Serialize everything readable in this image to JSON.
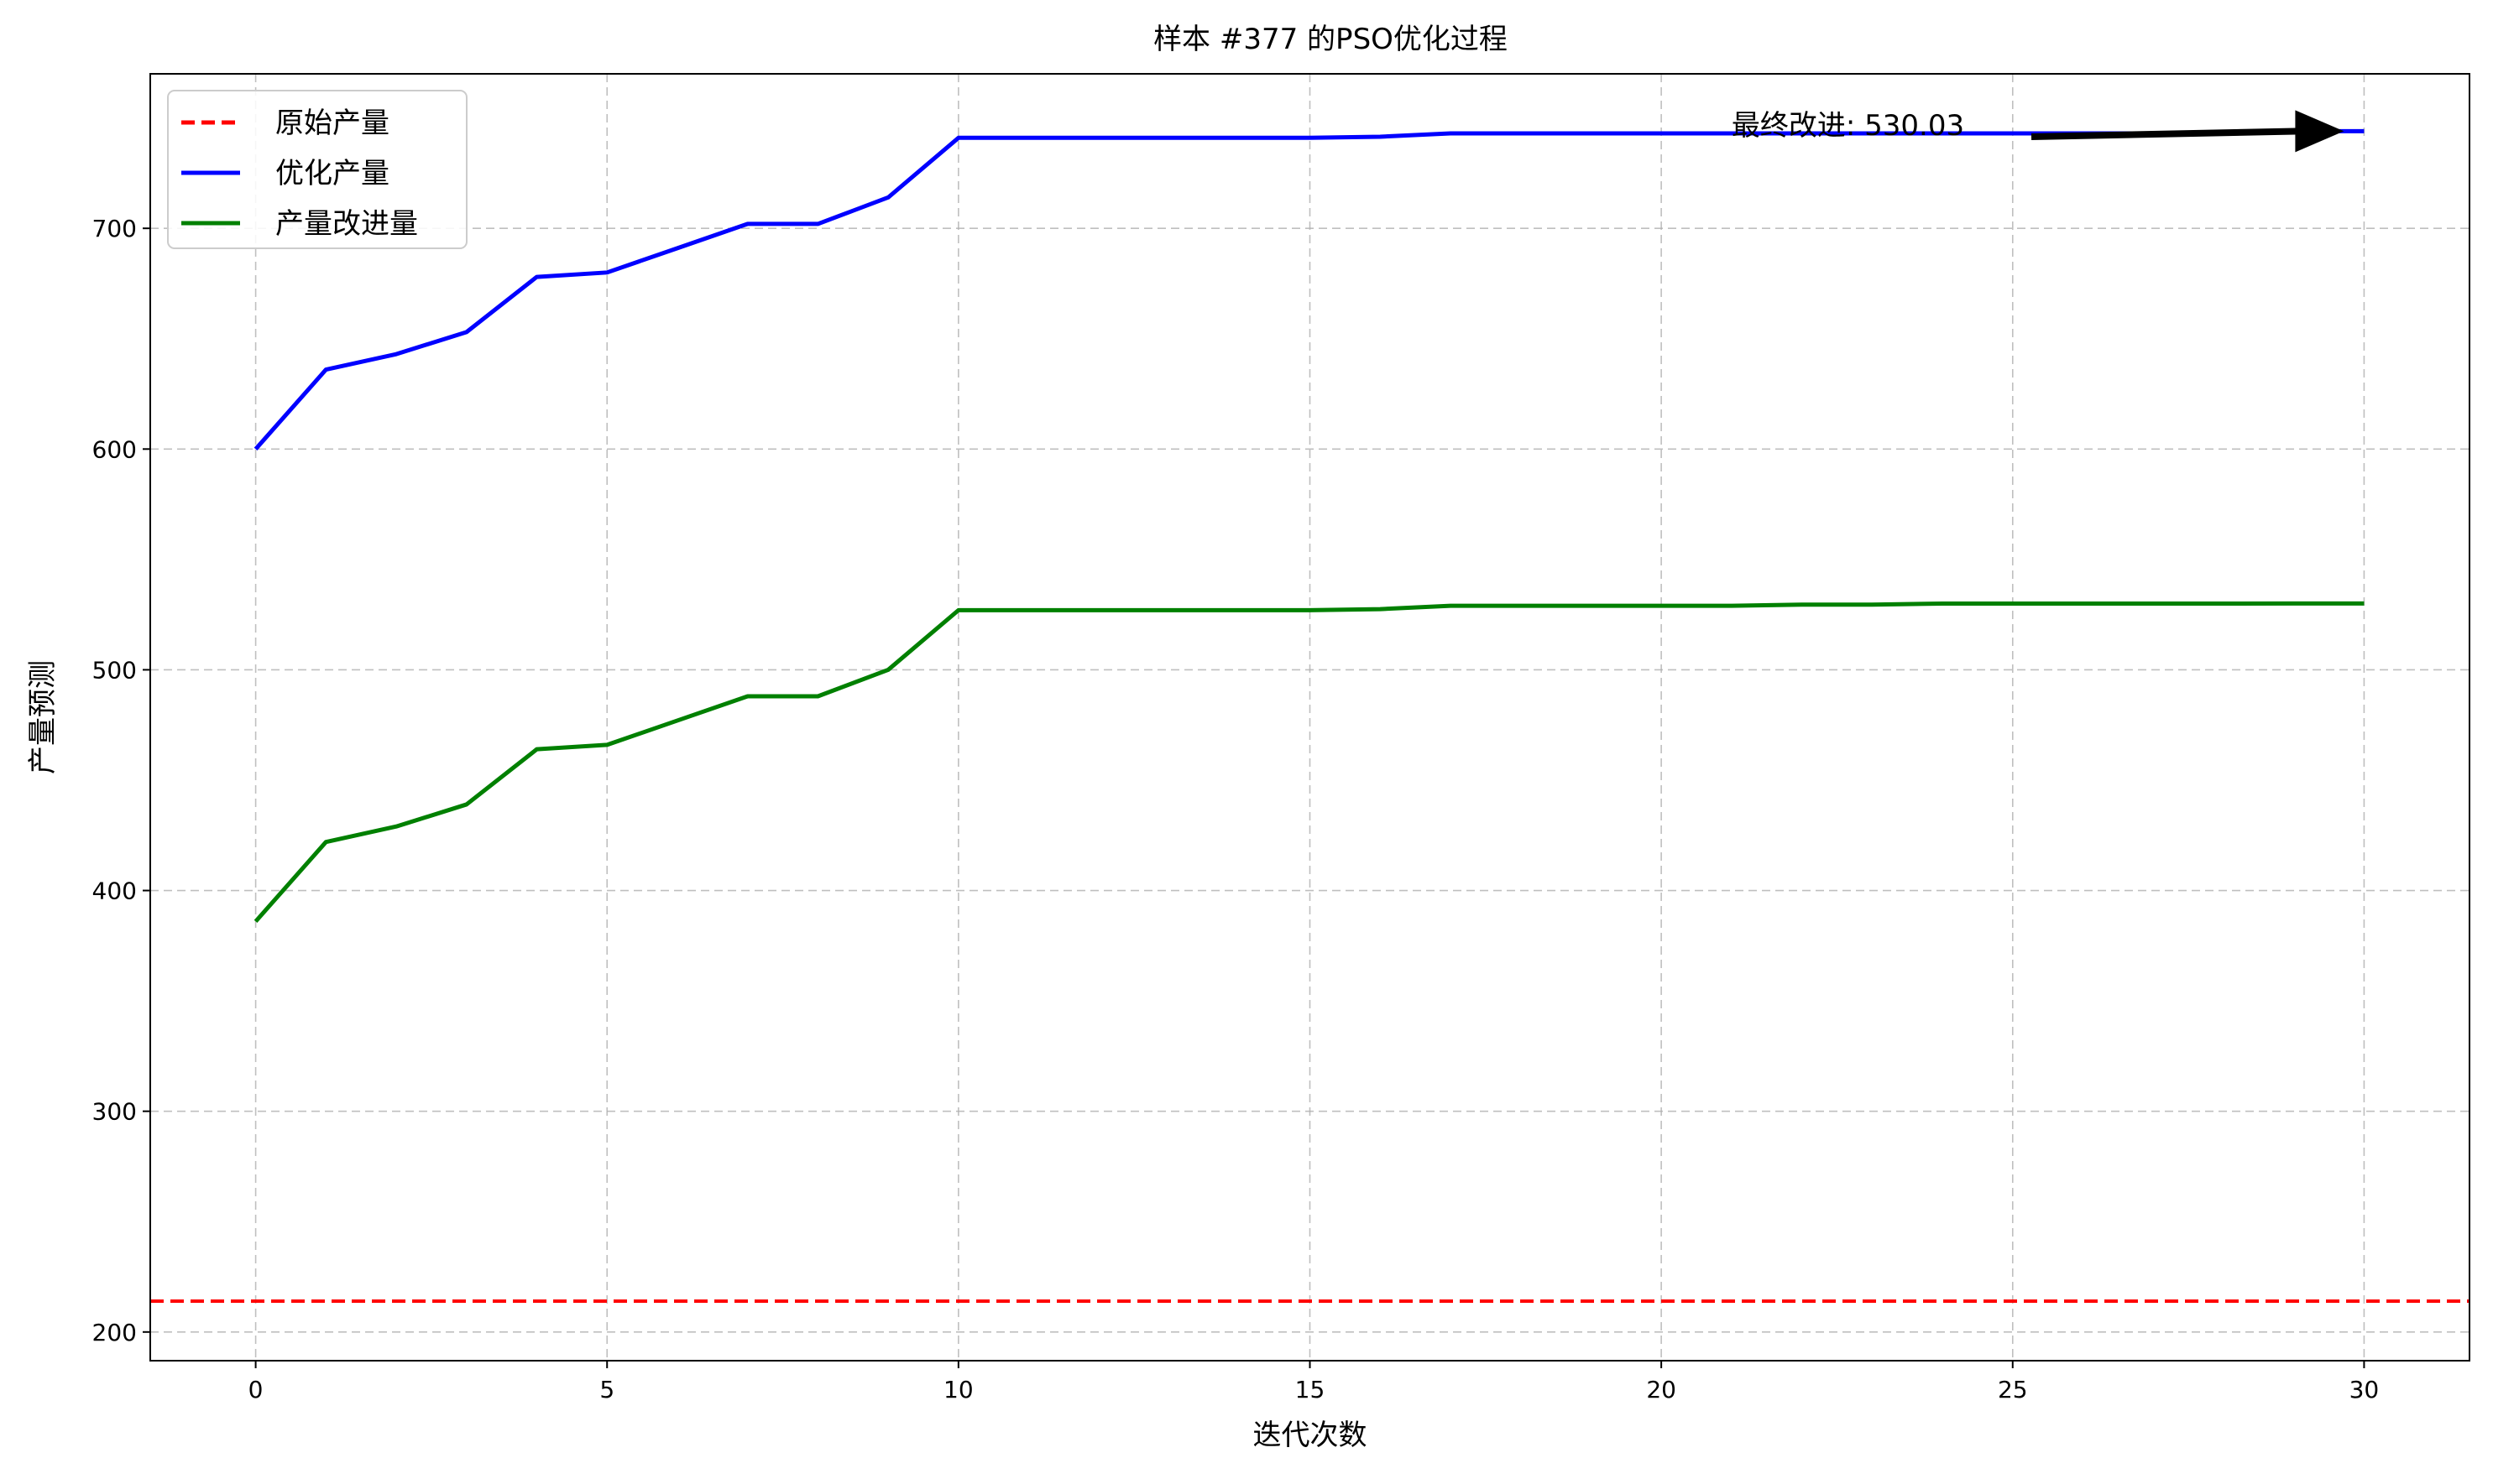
{
  "chart_data": {
    "type": "line",
    "title": "样本 #377 的PSO优化过程",
    "xlabel": "迭代次数",
    "ylabel": "产量预测",
    "xlim": [
      -1.5,
      31.5
    ],
    "ylim": [
      187,
      770
    ],
    "xticks": [
      0,
      5,
      10,
      15,
      20,
      25,
      30
    ],
    "yticks": [
      200,
      300,
      400,
      500,
      600,
      700
    ],
    "grid": true,
    "legend_position": "top-left",
    "x": [
      0,
      1,
      2,
      3,
      4,
      5,
      6,
      7,
      8,
      9,
      10,
      11,
      12,
      13,
      14,
      15,
      16,
      17,
      18,
      19,
      20,
      21,
      22,
      23,
      24,
      25,
      26,
      27,
      28,
      29,
      30
    ],
    "series": [
      {
        "name": "原始产量",
        "style": "dashed",
        "color": "#ff0000",
        "hline": 214
      },
      {
        "name": "优化产量",
        "style": "solid",
        "color": "#0000ff",
        "values": [
          600,
          636,
          643,
          653,
          678,
          680,
          691,
          702,
          702,
          714,
          741,
          741,
          741,
          741,
          741,
          741,
          741.5,
          743,
          743,
          743,
          743,
          743,
          743,
          743,
          743,
          743,
          743,
          743,
          743,
          744,
          744
        ]
      },
      {
        "name": "产量改进量",
        "style": "solid",
        "color": "#008000",
        "values": [
          386,
          422,
          429,
          439,
          464,
          466,
          477,
          488,
          488,
          500,
          527,
          527,
          527,
          527,
          527,
          527,
          527.5,
          529,
          529,
          529,
          529,
          529,
          529.5,
          529.5,
          530,
          530,
          530,
          530,
          530,
          530.03,
          530.03
        ]
      }
    ],
    "annotation": {
      "text": "最终改进: 530.03",
      "target_x": 30,
      "target_y": 744,
      "text_x": 21,
      "text_y": 743
    }
  }
}
